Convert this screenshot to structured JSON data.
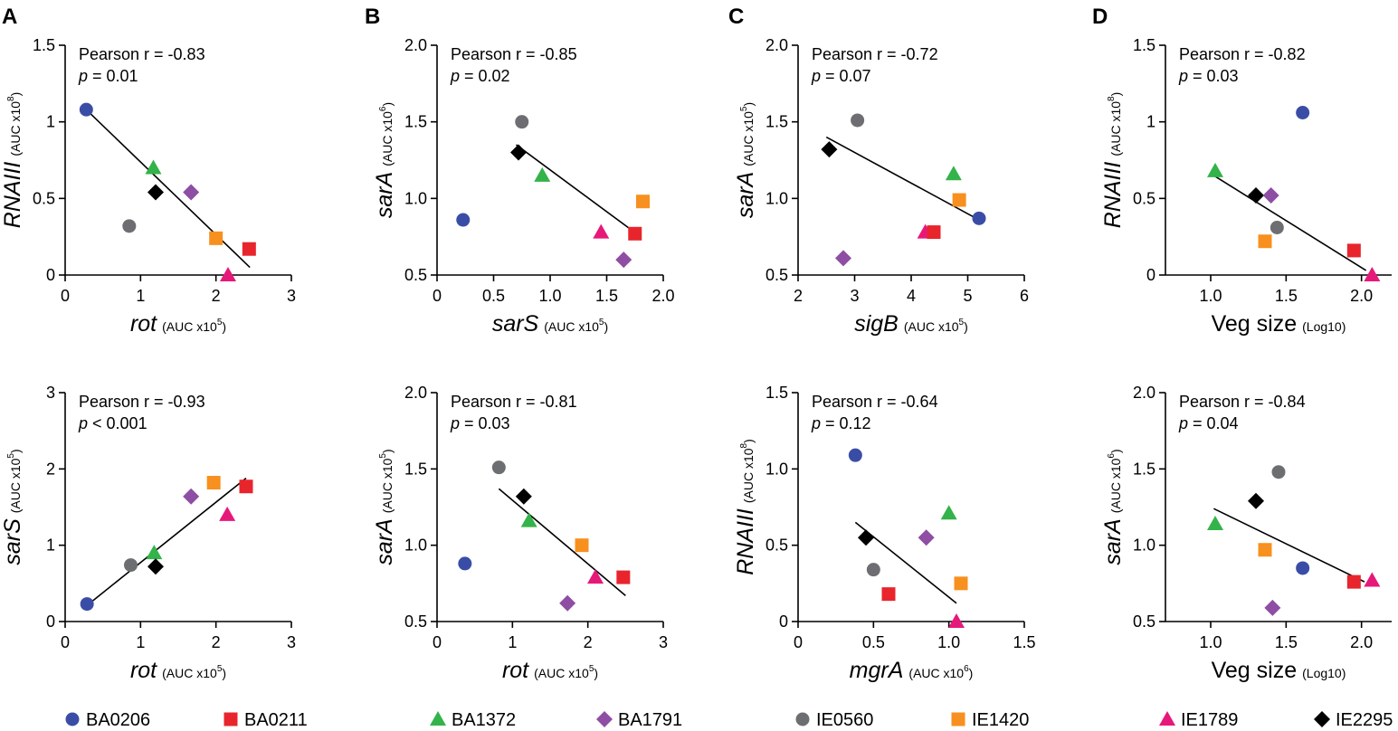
{
  "panel_letters": [
    "A",
    "B",
    "C",
    "D"
  ],
  "legend": [
    {
      "id": "BA0206",
      "label": "BA0206",
      "color": "#3a4da6",
      "shape": "circle"
    },
    {
      "id": "BA0211",
      "label": "BA0211",
      "color": "#e8252c",
      "shape": "square"
    },
    {
      "id": "BA1372",
      "label": "BA1372",
      "color": "#33b34a",
      "shape": "triangle"
    },
    {
      "id": "BA1791",
      "label": "BA1791",
      "color": "#8e4ea3",
      "shape": "diamond"
    },
    {
      "id": "IE0560",
      "label": "IE0560",
      "color": "#6d6e71",
      "shape": "circle"
    },
    {
      "id": "IE1420",
      "label": "IE1420",
      "color": "#f7901e",
      "shape": "square"
    },
    {
      "id": "IE1789",
      "label": "IE1789",
      "color": "#e6197a",
      "shape": "triangle"
    },
    {
      "id": "IE2295",
      "label": "IE2295",
      "color": "#000000",
      "shape": "diamond"
    }
  ],
  "chart_data": [
    {
      "id": "A-top",
      "type": "scatter",
      "panel": "A",
      "xlabel": "rot",
      "xlabel_unit": "(AUC x10",
      "xlabel_exp": "5",
      "xlabel_close": ")",
      "ylabel": "RNAIII",
      "ylabel_unit": "(AUC x10",
      "ylabel_exp": "8",
      "ylabel_close": ")",
      "xlim": [
        0,
        3
      ],
      "ylim": [
        0,
        1.5
      ],
      "xticks": [
        0,
        1,
        2,
        3
      ],
      "xticklabels": [
        "0",
        "1",
        "2",
        "3"
      ],
      "yticks": [
        0,
        0.5,
        1,
        1.5
      ],
      "yticklabels": [
        "0",
        "0.5",
        "1",
        "1.5"
      ],
      "stat_r": "Pearson r = -0.83",
      "stat_p_prefix": "p",
      "stat_p_rest": " = 0.01",
      "fit": [
        [
          0.3,
          1.07
        ],
        [
          2.45,
          0.05
        ]
      ],
      "points": [
        {
          "strain": "BA0206",
          "x": 0.28,
          "y": 1.08
        },
        {
          "strain": "IE0560",
          "x": 0.85,
          "y": 0.32
        },
        {
          "strain": "BA1372",
          "x": 1.17,
          "y": 0.7
        },
        {
          "strain": "IE2295",
          "x": 1.2,
          "y": 0.54
        },
        {
          "strain": "BA1791",
          "x": 1.67,
          "y": 0.54
        },
        {
          "strain": "IE1420",
          "x": 2.0,
          "y": 0.24
        },
        {
          "strain": "BA0211",
          "x": 2.44,
          "y": 0.17
        },
        {
          "strain": "IE1789",
          "x": 2.16,
          "y": 0.0
        }
      ]
    },
    {
      "id": "B-top",
      "type": "scatter",
      "panel": "B",
      "xlabel": "sarS",
      "xlabel_unit": "(AUC x10",
      "xlabel_exp": "5",
      "xlabel_close": ")",
      "ylabel": "sarA",
      "ylabel_unit": "(AUC x10",
      "ylabel_exp": "6",
      "ylabel_close": ")",
      "xlim": [
        0,
        2.0
      ],
      "ylim": [
        0.5,
        2.0
      ],
      "xticks": [
        0,
        0.5,
        1.0,
        1.5,
        2.0
      ],
      "xticklabels": [
        "0",
        "0.5",
        "1.0",
        "1.5",
        "2.0"
      ],
      "yticks": [
        0.5,
        1.0,
        1.5,
        2.0
      ],
      "yticklabels": [
        "0.5",
        "1.0",
        "1.5",
        "2.0"
      ],
      "stat_r": "Pearson r = -0.85",
      "stat_p_prefix": "p",
      "stat_p_rest": " = 0.02",
      "fit": [
        [
          0.7,
          1.35
        ],
        [
          1.8,
          0.75
        ]
      ],
      "points": [
        {
          "strain": "BA0206",
          "x": 0.23,
          "y": 0.86
        },
        {
          "strain": "IE0560",
          "x": 0.75,
          "y": 1.5
        },
        {
          "strain": "IE2295",
          "x": 0.72,
          "y": 1.3
        },
        {
          "strain": "BA1372",
          "x": 0.93,
          "y": 1.15
        },
        {
          "strain": "IE1789",
          "x": 1.45,
          "y": 0.78
        },
        {
          "strain": "BA0211",
          "x": 1.75,
          "y": 0.77
        },
        {
          "strain": "IE1420",
          "x": 1.82,
          "y": 0.98
        },
        {
          "strain": "BA1791",
          "x": 1.65,
          "y": 0.6
        }
      ]
    },
    {
      "id": "C-top",
      "type": "scatter",
      "panel": "C",
      "xlabel": "sigB",
      "xlabel_unit": "(AUC x10",
      "xlabel_exp": "5",
      "xlabel_close": ")",
      "ylabel": "sarA",
      "ylabel_unit": "(AUC x10",
      "ylabel_exp": "5",
      "ylabel_close": ")",
      "xlim": [
        2,
        6
      ],
      "ylim": [
        0.5,
        2.0
      ],
      "xticks": [
        2,
        3,
        4,
        5,
        6
      ],
      "xticklabels": [
        "2",
        "3",
        "4",
        "5",
        "6"
      ],
      "yticks": [
        0.5,
        1.0,
        1.5,
        2.0
      ],
      "yticklabels": [
        "0.5",
        "1.0",
        "1.5",
        "2.0"
      ],
      "stat_r": "Pearson r = -0.72",
      "stat_p_prefix": "p",
      "stat_p_rest": " = 0.07",
      "fit": [
        [
          2.5,
          1.4
        ],
        [
          5.2,
          0.86
        ]
      ],
      "points": [
        {
          "strain": "IE2295",
          "x": 2.55,
          "y": 1.32
        },
        {
          "strain": "IE0560",
          "x": 3.05,
          "y": 1.51
        },
        {
          "strain": "BA1791",
          "x": 2.8,
          "y": 0.61
        },
        {
          "strain": "IE1789",
          "x": 4.25,
          "y": 0.78
        },
        {
          "strain": "BA0211",
          "x": 4.4,
          "y": 0.78
        },
        {
          "strain": "BA1372",
          "x": 4.75,
          "y": 1.16
        },
        {
          "strain": "IE1420",
          "x": 4.85,
          "y": 0.99
        },
        {
          "strain": "BA0206",
          "x": 5.2,
          "y": 0.87
        }
      ]
    },
    {
      "id": "D-top",
      "type": "scatter",
      "panel": "D",
      "xlabel": "Veg size",
      "xlabel_unit": "(Log10)",
      "xlabel_exp": "",
      "xlabel_close": "",
      "ylabel": "RNAIII",
      "ylabel_unit": "(AUC x10",
      "ylabel_exp": "8",
      "ylabel_close": ")",
      "xlim": [
        0.7,
        2.2
      ],
      "ylim": [
        0,
        1.5
      ],
      "xticks": [
        1.0,
        1.5,
        2.0
      ],
      "xticklabels": [
        "1.0",
        "1.5",
        "2.0"
      ],
      "yticks": [
        0,
        0.5,
        1,
        1.5
      ],
      "yticklabels": [
        "0",
        "0.5",
        "1",
        "1.5"
      ],
      "stat_r": "Pearson r = -0.82",
      "stat_p_prefix": "p",
      "stat_p_rest": " = 0.03",
      "fit": [
        [
          1.02,
          0.65
        ],
        [
          2.03,
          0.03
        ]
      ],
      "points": [
        {
          "strain": "BA1372",
          "x": 1.03,
          "y": 0.68
        },
        {
          "strain": "IE2295",
          "x": 1.3,
          "y": 0.52
        },
        {
          "strain": "BA1791",
          "x": 1.4,
          "y": 0.52
        },
        {
          "strain": "IE0560",
          "x": 1.44,
          "y": 0.31
        },
        {
          "strain": "IE1420",
          "x": 1.36,
          "y": 0.22
        },
        {
          "strain": "BA0206",
          "x": 1.61,
          "y": 1.06
        },
        {
          "strain": "BA0211",
          "x": 1.95,
          "y": 0.16
        },
        {
          "strain": "IE1789",
          "x": 2.07,
          "y": 0.0
        }
      ]
    },
    {
      "id": "A-bottom",
      "type": "scatter",
      "panel": "A",
      "xlabel": "rot",
      "xlabel_unit": "(AUC x10",
      "xlabel_exp": "5",
      "xlabel_close": ")",
      "ylabel": "sarS",
      "ylabel_unit": "(AUC x10",
      "ylabel_exp": "5",
      "ylabel_close": ")",
      "xlim": [
        0,
        3
      ],
      "ylim": [
        0,
        3
      ],
      "xticks": [
        0,
        1,
        2,
        3
      ],
      "xticklabels": [
        "0",
        "1",
        "2",
        "3"
      ],
      "yticks": [
        0,
        1,
        2,
        3
      ],
      "yticklabels": [
        "0",
        "1",
        "2",
        "3"
      ],
      "stat_r": "Pearson r = -0.93",
      "stat_p_prefix": "p",
      "stat_p_rest": " < 0.001",
      "fit": [
        [
          0.3,
          0.22
        ],
        [
          2.4,
          1.88
        ]
      ],
      "points": [
        {
          "strain": "BA0206",
          "x": 0.29,
          "y": 0.23
        },
        {
          "strain": "IE0560",
          "x": 0.87,
          "y": 0.74
        },
        {
          "strain": "BA1372",
          "x": 1.18,
          "y": 0.9
        },
        {
          "strain": "IE2295",
          "x": 1.2,
          "y": 0.72
        },
        {
          "strain": "BA1791",
          "x": 1.67,
          "y": 1.64
        },
        {
          "strain": "IE1420",
          "x": 1.97,
          "y": 1.82
        },
        {
          "strain": "BA0211",
          "x": 2.4,
          "y": 1.77
        },
        {
          "strain": "IE1789",
          "x": 2.15,
          "y": 1.4
        }
      ]
    },
    {
      "id": "B-bottom",
      "type": "scatter",
      "panel": "B",
      "xlabel": "rot",
      "xlabel_unit": "(AUC x10",
      "xlabel_exp": "5",
      "xlabel_close": ")",
      "ylabel": "sarA",
      "ylabel_unit": "(AUC x10",
      "ylabel_exp": "5",
      "ylabel_close": ")",
      "xlim": [
        0,
        3
      ],
      "ylim": [
        0.5,
        2.0
      ],
      "xticks": [
        0,
        1,
        2,
        3
      ],
      "xticklabels": [
        "0",
        "1",
        "2",
        "3"
      ],
      "yticks": [
        0.5,
        1.0,
        1.5,
        2.0
      ],
      "yticklabels": [
        "0.5",
        "1.0",
        "1.5",
        "2.0"
      ],
      "stat_r": "Pearson r = -0.81",
      "stat_p_prefix": "p",
      "stat_p_rest": " = 0.03",
      "fit": [
        [
          0.82,
          1.37
        ],
        [
          2.5,
          0.67
        ]
      ],
      "points": [
        {
          "strain": "BA0206",
          "x": 0.37,
          "y": 0.88
        },
        {
          "strain": "IE0560",
          "x": 0.82,
          "y": 1.51
        },
        {
          "strain": "IE2295",
          "x": 1.15,
          "y": 1.32
        },
        {
          "strain": "BA1372",
          "x": 1.22,
          "y": 1.16
        },
        {
          "strain": "IE1420",
          "x": 1.92,
          "y": 1.0
        },
        {
          "strain": "IE1789",
          "x": 2.1,
          "y": 0.79
        },
        {
          "strain": "BA0211",
          "x": 2.47,
          "y": 0.79
        },
        {
          "strain": "BA1791",
          "x": 1.73,
          "y": 0.62
        }
      ]
    },
    {
      "id": "C-bottom",
      "type": "scatter",
      "panel": "C",
      "xlabel": "mgrA",
      "xlabel_unit": "(AUC x10",
      "xlabel_exp": "6",
      "xlabel_close": ")",
      "ylabel": "RNAIII",
      "ylabel_unit": "(AUC x10",
      "ylabel_exp": "8",
      "ylabel_close": ")",
      "xlim": [
        0,
        1.5
      ],
      "ylim": [
        0,
        1.5
      ],
      "xticks": [
        0,
        0.5,
        1.0,
        1.5
      ],
      "xticklabels": [
        "0",
        "0.5",
        "1.0",
        "1.5"
      ],
      "yticks": [
        0,
        0.5,
        1.0,
        1.5
      ],
      "yticklabels": [
        "0",
        "0.5",
        "1.0",
        "1.5"
      ],
      "stat_r": "Pearson r = -0.64",
      "stat_p_prefix": "p",
      "stat_p_rest": " = 0.12",
      "fit": [
        [
          0.38,
          0.65
        ],
        [
          1.05,
          0.12
        ]
      ],
      "points": [
        {
          "strain": "BA0206",
          "x": 0.38,
          "y": 1.09
        },
        {
          "strain": "IE2295",
          "x": 0.45,
          "y": 0.55
        },
        {
          "strain": "IE0560",
          "x": 0.5,
          "y": 0.34
        },
        {
          "strain": "BA0211",
          "x": 0.6,
          "y": 0.18
        },
        {
          "strain": "BA1791",
          "x": 0.85,
          "y": 0.55
        },
        {
          "strain": "BA1372",
          "x": 1.0,
          "y": 0.71
        },
        {
          "strain": "IE1420",
          "x": 1.08,
          "y": 0.25
        },
        {
          "strain": "IE1789",
          "x": 1.05,
          "y": 0.0
        }
      ]
    },
    {
      "id": "D-bottom",
      "type": "scatter",
      "panel": "D",
      "xlabel": "Veg size",
      "xlabel_unit": "(Log10)",
      "xlabel_exp": "",
      "xlabel_close": "",
      "ylabel": "sarA",
      "ylabel_unit": "(AUC x10",
      "ylabel_exp": "6",
      "ylabel_close": ")",
      "xlim": [
        0.7,
        2.2
      ],
      "ylim": [
        0.5,
        2.0
      ],
      "xticks": [
        1.0,
        1.5,
        2.0
      ],
      "xticklabels": [
        "1.0",
        "1.5",
        "2.0"
      ],
      "yticks": [
        0.5,
        1.0,
        1.5,
        2.0
      ],
      "yticklabels": [
        "0.5",
        "1.0",
        "1.5",
        "2.0"
      ],
      "stat_r": "Pearson r = -0.84",
      "stat_p_prefix": "p",
      "stat_p_rest": " = 0.04",
      "fit": [
        [
          1.02,
          1.24
        ],
        [
          2.02,
          0.76
        ]
      ],
      "points": [
        {
          "strain": "BA1372",
          "x": 1.03,
          "y": 1.14
        },
        {
          "strain": "IE2295",
          "x": 1.3,
          "y": 1.29
        },
        {
          "strain": "IE0560",
          "x": 1.45,
          "y": 1.48
        },
        {
          "strain": "IE1420",
          "x": 1.36,
          "y": 0.97
        },
        {
          "strain": "BA0206",
          "x": 1.61,
          "y": 0.85
        },
        {
          "strain": "BA1791",
          "x": 1.41,
          "y": 0.59
        },
        {
          "strain": "BA0211",
          "x": 1.95,
          "y": 0.76
        },
        {
          "strain": "IE1789",
          "x": 2.07,
          "y": 0.77
        }
      ]
    }
  ]
}
